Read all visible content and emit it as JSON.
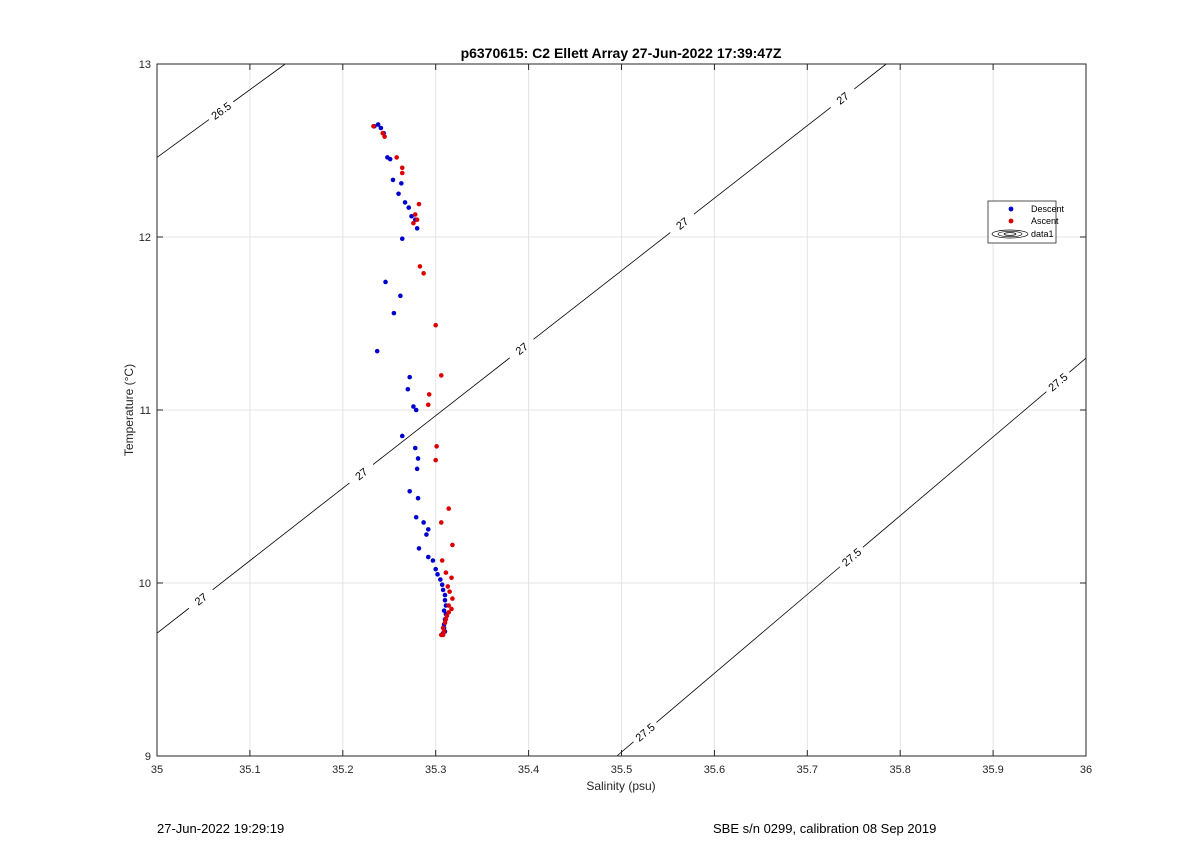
{
  "chart_data": {
    "type": "scatter",
    "title": "p6370615: C2 Ellett Array 27-Jun-2022 17:39:47Z",
    "xlabel": "Salinity (psu)",
    "ylabel": "Temperature (°C)",
    "xlim": [
      35,
      36
    ],
    "ylim": [
      9,
      13
    ],
    "xticks": [
      "35",
      "35.1",
      "35.2",
      "35.3",
      "35.4",
      "35.5",
      "35.6",
      "35.7",
      "35.8",
      "35.9",
      "36"
    ],
    "yticks": [
      "9",
      "10",
      "11",
      "12",
      "13"
    ],
    "grid": true,
    "legend_position": "right",
    "legend": [
      "Descent",
      "Ascent",
      "data1"
    ],
    "series": [
      {
        "name": "Descent",
        "color": "#0000cc",
        "points": [
          [
            35.234,
            12.64
          ],
          [
            35.238,
            12.65
          ],
          [
            35.241,
            12.63
          ],
          [
            35.244,
            12.6
          ],
          [
            35.248,
            12.46
          ],
          [
            35.251,
            12.45
          ],
          [
            35.254,
            12.33
          ],
          [
            35.26,
            12.25
          ],
          [
            35.263,
            12.31
          ],
          [
            35.267,
            12.2
          ],
          [
            35.271,
            12.17
          ],
          [
            35.274,
            12.12
          ],
          [
            35.278,
            12.1
          ],
          [
            35.28,
            12.05
          ],
          [
            35.264,
            11.99
          ],
          [
            35.246,
            11.74
          ],
          [
            35.262,
            11.66
          ],
          [
            35.255,
            11.56
          ],
          [
            35.237,
            11.34
          ],
          [
            35.272,
            11.19
          ],
          [
            35.27,
            11.12
          ],
          [
            35.276,
            11.02
          ],
          [
            35.279,
            11.0
          ],
          [
            35.264,
            10.85
          ],
          [
            35.278,
            10.78
          ],
          [
            35.281,
            10.72
          ],
          [
            35.28,
            10.66
          ],
          [
            35.272,
            10.53
          ],
          [
            35.281,
            10.49
          ],
          [
            35.279,
            10.38
          ],
          [
            35.287,
            10.35
          ],
          [
            35.29,
            10.28
          ],
          [
            35.292,
            10.31
          ],
          [
            35.282,
            10.2
          ],
          [
            35.292,
            10.15
          ],
          [
            35.297,
            10.13
          ],
          [
            35.3,
            10.08
          ],
          [
            35.302,
            10.05
          ],
          [
            35.305,
            10.02
          ],
          [
            35.307,
            9.99
          ],
          [
            35.308,
            9.96
          ],
          [
            35.31,
            9.93
          ],
          [
            35.31,
            9.9
          ],
          [
            35.311,
            9.87
          ],
          [
            35.309,
            9.84
          ],
          [
            35.311,
            9.82
          ],
          [
            35.31,
            9.79
          ],
          [
            35.309,
            9.76
          ],
          [
            35.309,
            9.74
          ],
          [
            35.31,
            9.72
          ],
          [
            35.308,
            9.71
          ]
        ]
      },
      {
        "name": "Ascent",
        "color": "#dd0000",
        "points": [
          [
            35.233,
            12.64
          ],
          [
            35.243,
            12.6
          ],
          [
            35.245,
            12.58
          ],
          [
            35.258,
            12.46
          ],
          [
            35.264,
            12.4
          ],
          [
            35.264,
            12.37
          ],
          [
            35.282,
            12.19
          ],
          [
            35.278,
            12.13
          ],
          [
            35.28,
            12.1
          ],
          [
            35.276,
            12.08
          ],
          [
            35.283,
            11.83
          ],
          [
            35.287,
            11.79
          ],
          [
            35.3,
            11.49
          ],
          [
            35.306,
            11.2
          ],
          [
            35.293,
            11.09
          ],
          [
            35.292,
            11.03
          ],
          [
            35.301,
            10.79
          ],
          [
            35.3,
            10.71
          ],
          [
            35.314,
            10.43
          ],
          [
            35.306,
            10.35
          ],
          [
            35.318,
            10.22
          ],
          [
            35.307,
            10.13
          ],
          [
            35.311,
            10.06
          ],
          [
            35.317,
            10.03
          ],
          [
            35.313,
            9.98
          ],
          [
            35.315,
            9.95
          ],
          [
            35.318,
            9.91
          ],
          [
            35.314,
            9.87
          ],
          [
            35.317,
            9.85
          ],
          [
            35.314,
            9.83
          ],
          [
            35.312,
            9.81
          ],
          [
            35.311,
            9.79
          ],
          [
            35.31,
            9.77
          ],
          [
            35.308,
            9.74
          ],
          [
            35.309,
            9.72
          ],
          [
            35.306,
            9.7
          ],
          [
            35.308,
            9.7
          ]
        ]
      }
    ],
    "contours": [
      {
        "label": "26.5",
        "points": [
          [
            35,
            12.46
          ],
          [
            35.138,
            13
          ]
        ]
      },
      {
        "label": "27",
        "points": [
          [
            35,
            9.71
          ],
          [
            35.785,
            13
          ]
        ]
      },
      {
        "label": "27.5",
        "points": [
          [
            35.495,
            9
          ],
          [
            36,
            11.3
          ]
        ]
      }
    ]
  },
  "footer": {
    "timestamp": "27-Jun-2022 19:29:19",
    "instrument": "SBE s/n 0299, calibration 08 Sep 2019"
  }
}
